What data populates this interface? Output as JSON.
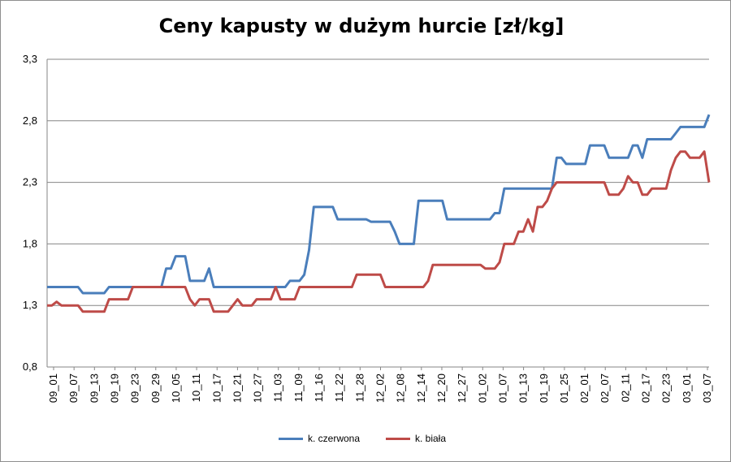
{
  "chart_data": {
    "type": "line",
    "title": "Ceny kapusty w dużym hurcie [zł/kg]",
    "xlabel": "",
    "ylabel": "",
    "ylim": [
      0.8,
      3.3
    ],
    "yticks": [
      "0,8",
      "1,3",
      "1,8",
      "2,3",
      "2,8",
      "3,3"
    ],
    "ytick_values": [
      0.8,
      1.3,
      1.8,
      2.3,
      2.8,
      3.3
    ],
    "grid": "horizontal",
    "legend_position": "bottom",
    "x_tick_labels": [
      "09_01",
      "09_07",
      "09_13",
      "09_19",
      "09_23",
      "09_29",
      "10_05",
      "10_11",
      "10_17",
      "10_21",
      "10_27",
      "11_03",
      "11_09",
      "11_16",
      "11_22",
      "11_28",
      "12_02",
      "12_08",
      "12_14",
      "12_20",
      "12_27",
      "01_02",
      "01_07",
      "01_13",
      "01_19",
      "01_25",
      "02_01",
      "02_07",
      "02_11",
      "02_17",
      "02_23",
      "03_01",
      "03_07"
    ],
    "series": [
      {
        "name": "k. czerwona",
        "color": "#4a7ebb",
        "points": [
          [
            0,
            1.45
          ],
          [
            6.5,
            1.45
          ],
          [
            7.5,
            1.4
          ],
          [
            12,
            1.4
          ],
          [
            13,
            1.45
          ],
          [
            24,
            1.45
          ],
          [
            25,
            1.6
          ],
          [
            26,
            1.6
          ],
          [
            27,
            1.7
          ],
          [
            29,
            1.7
          ],
          [
            30,
            1.5
          ],
          [
            33,
            1.5
          ],
          [
            34,
            1.6
          ],
          [
            35,
            1.45
          ],
          [
            50,
            1.45
          ],
          [
            51,
            1.5
          ],
          [
            53,
            1.5
          ],
          [
            54,
            1.55
          ],
          [
            55,
            1.75
          ],
          [
            56,
            2.1
          ],
          [
            60,
            2.1
          ],
          [
            61,
            2.0
          ],
          [
            67,
            2.0
          ],
          [
            68,
            1.98
          ],
          [
            72,
            1.98
          ],
          [
            73,
            1.9
          ],
          [
            74,
            1.8
          ],
          [
            77,
            1.8
          ],
          [
            78,
            2.15
          ],
          [
            83,
            2.15
          ],
          [
            84,
            2.0
          ],
          [
            93,
            2.0
          ],
          [
            94,
            2.05
          ],
          [
            95,
            2.05
          ],
          [
            96,
            2.25
          ],
          [
            106,
            2.25
          ],
          [
            107,
            2.5
          ],
          [
            108,
            2.5
          ],
          [
            109,
            2.45
          ],
          [
            113,
            2.45
          ],
          [
            114,
            2.6
          ],
          [
            117,
            2.6
          ],
          [
            118,
            2.5
          ],
          [
            122,
            2.5
          ],
          [
            123,
            2.6
          ],
          [
            124,
            2.6
          ],
          [
            125,
            2.5
          ],
          [
            126,
            2.65
          ],
          [
            131,
            2.65
          ],
          [
            132,
            2.7
          ],
          [
            133,
            2.75
          ],
          [
            138,
            2.75
          ],
          [
            139,
            2.85
          ]
        ]
      },
      {
        "name": "k. biała",
        "color": "#be4b48",
        "points": [
          [
            0,
            1.3
          ],
          [
            1,
            1.3
          ],
          [
            2,
            1.33
          ],
          [
            3,
            1.3
          ],
          [
            6.5,
            1.3
          ],
          [
            7.5,
            1.25
          ],
          [
            12,
            1.25
          ],
          [
            13,
            1.35
          ],
          [
            17,
            1.35
          ],
          [
            18,
            1.45
          ],
          [
            29,
            1.45
          ],
          [
            30,
            1.35
          ],
          [
            31,
            1.3
          ],
          [
            32,
            1.35
          ],
          [
            34,
            1.35
          ],
          [
            35,
            1.25
          ],
          [
            38,
            1.25
          ],
          [
            39,
            1.3
          ],
          [
            40,
            1.35
          ],
          [
            41,
            1.3
          ],
          [
            43,
            1.3
          ],
          [
            44,
            1.35
          ],
          [
            47,
            1.35
          ],
          [
            48,
            1.45
          ],
          [
            49,
            1.35
          ],
          [
            52,
            1.35
          ],
          [
            53,
            1.45
          ],
          [
            64,
            1.45
          ],
          [
            65,
            1.55
          ],
          [
            70,
            1.55
          ],
          [
            71,
            1.45
          ],
          [
            79,
            1.45
          ],
          [
            80,
            1.5
          ],
          [
            81,
            1.63
          ],
          [
            91,
            1.63
          ],
          [
            92,
            1.6
          ],
          [
            94,
            1.6
          ],
          [
            95,
            1.65
          ],
          [
            96,
            1.8
          ],
          [
            98,
            1.8
          ],
          [
            99,
            1.9
          ],
          [
            100,
            1.9
          ],
          [
            101,
            2.0
          ],
          [
            102,
            1.9
          ],
          [
            103,
            2.1
          ],
          [
            104,
            2.1
          ],
          [
            105,
            2.15
          ],
          [
            106,
            2.25
          ],
          [
            107,
            2.3
          ],
          [
            117,
            2.3
          ],
          [
            118,
            2.2
          ],
          [
            120,
            2.2
          ],
          [
            121,
            2.25
          ],
          [
            122,
            2.35
          ],
          [
            123,
            2.3
          ],
          [
            124,
            2.3
          ],
          [
            125,
            2.2
          ],
          [
            126,
            2.2
          ],
          [
            127,
            2.25
          ],
          [
            130,
            2.25
          ],
          [
            131,
            2.4
          ],
          [
            132,
            2.5
          ],
          [
            133,
            2.55
          ],
          [
            134,
            2.55
          ],
          [
            135,
            2.5
          ],
          [
            137,
            2.5
          ],
          [
            138,
            2.55
          ],
          [
            139,
            2.3
          ]
        ]
      }
    ],
    "x_domain": [
      0,
      139
    ]
  }
}
